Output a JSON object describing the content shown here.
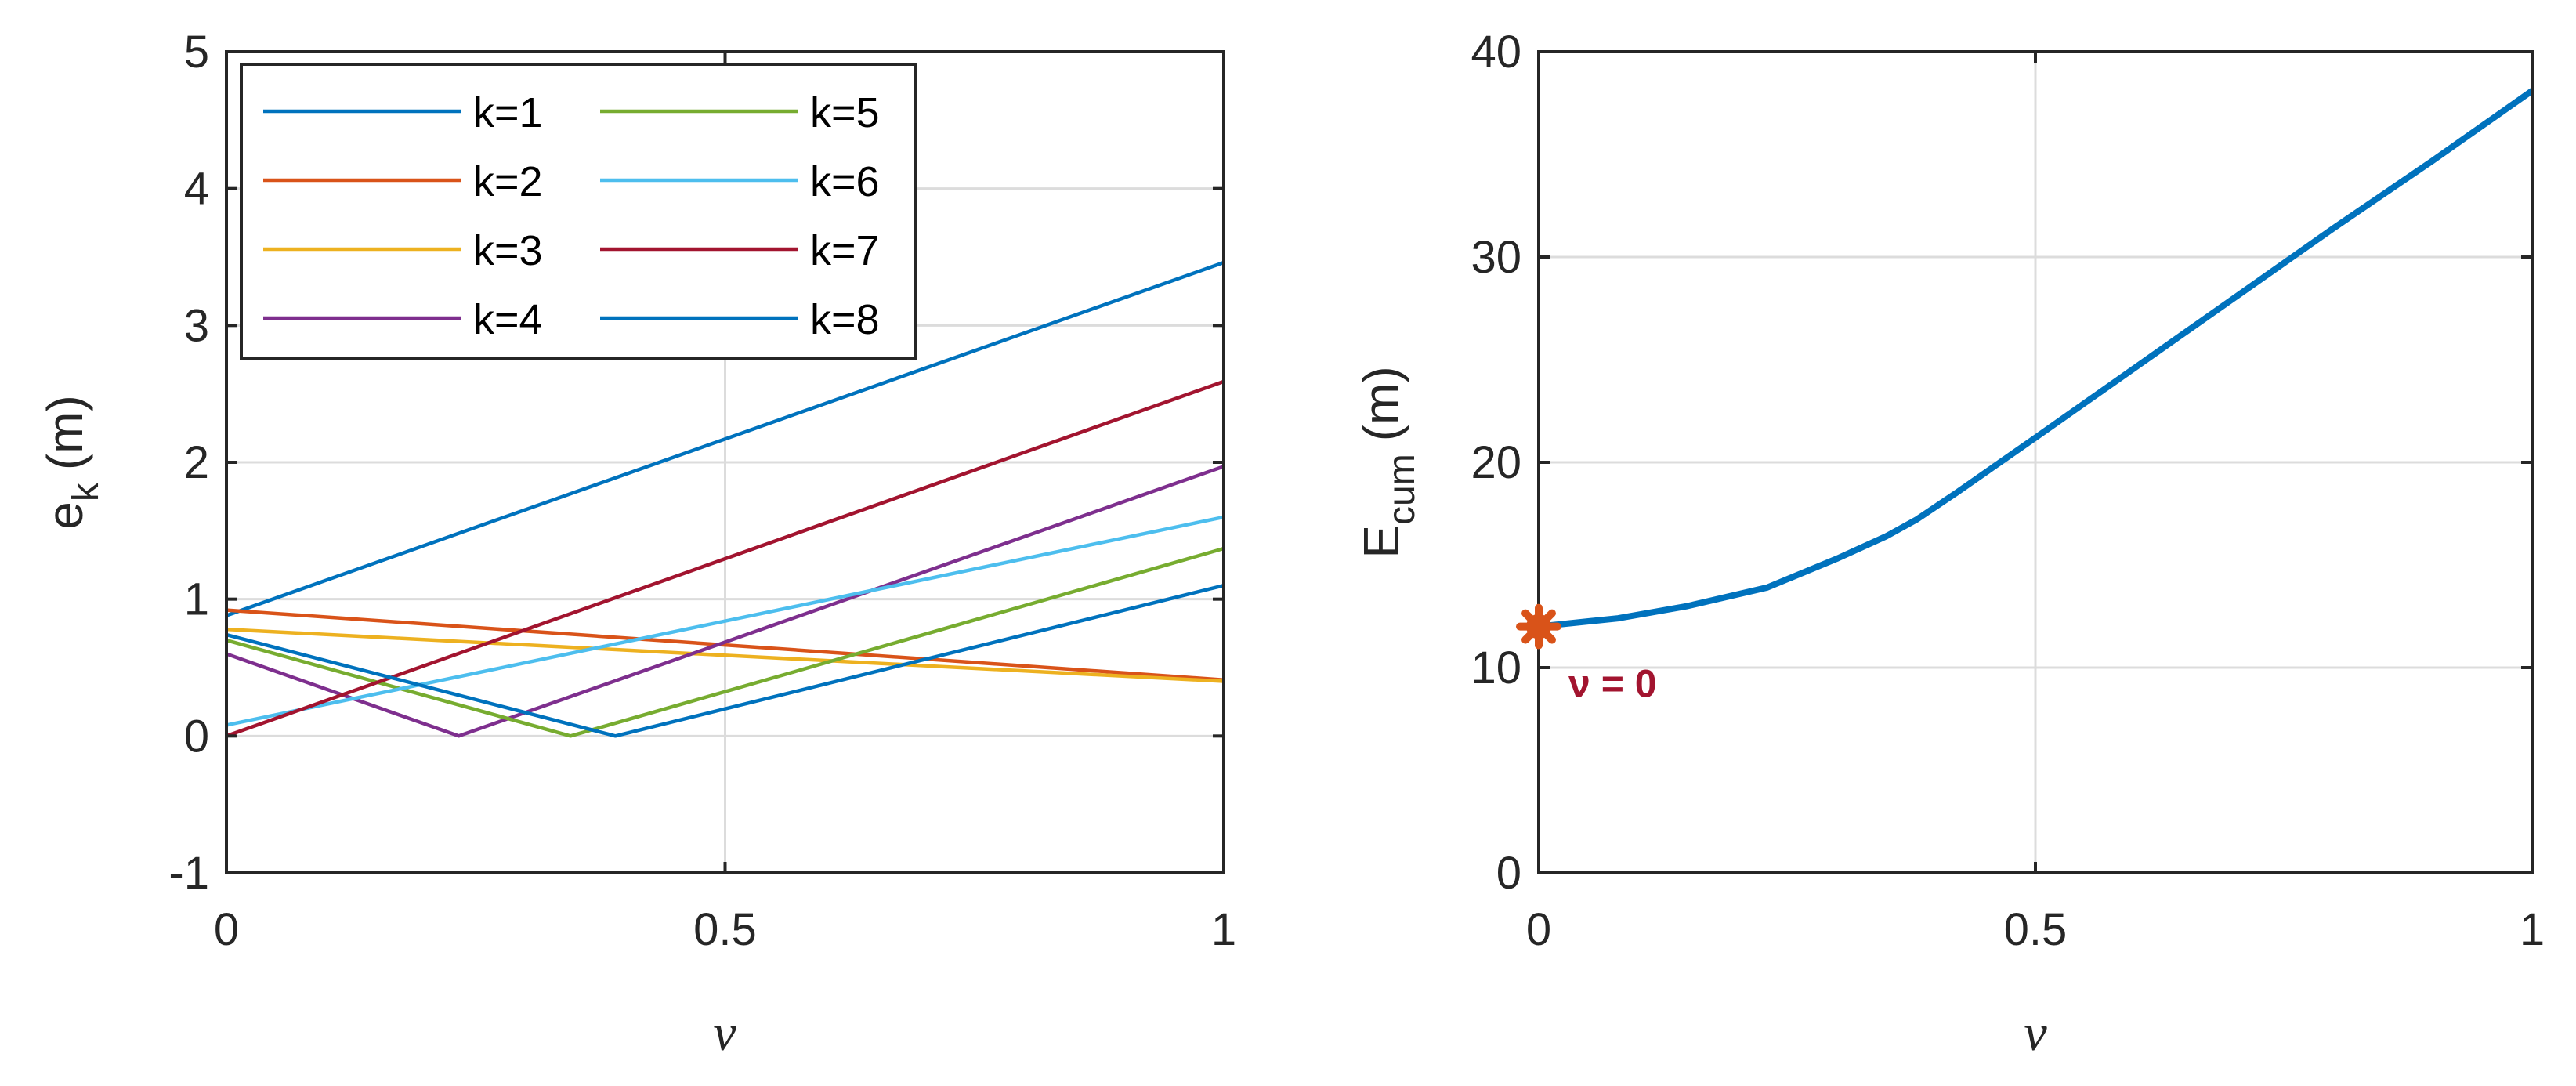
{
  "chart_data": [
    {
      "type": "line",
      "title": "",
      "xlabel": "ν",
      "ylabel": "e",
      "ylabel_sub": "k",
      "ylabel_unit": "(m)",
      "xlim": [
        0,
        1
      ],
      "ylim": [
        -1,
        5
      ],
      "xticks": [
        0,
        0.5,
        1
      ],
      "xtick_labels": [
        "0",
        "0.5",
        "1"
      ],
      "yticks": [
        -1,
        0,
        1,
        2,
        3,
        4,
        5
      ],
      "ytick_labels": [
        "-1",
        "0",
        "1",
        "2",
        "3",
        "4",
        "5"
      ],
      "grid": true,
      "legend": {
        "placement": "top-left",
        "columns": 2
      },
      "series": [
        {
          "name": "k=1",
          "color": "#0072BD",
          "points": [
            [
              0,
              0.88
            ],
            [
              1,
              3.46
            ]
          ]
        },
        {
          "name": "k=2",
          "color": "#D95319",
          "points": [
            [
              0,
              0.92
            ],
            [
              1,
              0.41
            ]
          ]
        },
        {
          "name": "k=3",
          "color": "#EDB120",
          "points": [
            [
              0,
              0.78
            ],
            [
              1,
              0.4
            ]
          ]
        },
        {
          "name": "k=4",
          "color": "#7E2F8E",
          "points": [
            [
              0,
              0.6
            ],
            [
              0.233,
              0.0
            ],
            [
              1,
              1.97
            ]
          ]
        },
        {
          "name": "k=5",
          "color": "#77AC30",
          "points": [
            [
              0,
              0.7
            ],
            [
              0.345,
              0.0
            ],
            [
              1,
              1.37
            ]
          ]
        },
        {
          "name": "k=6",
          "color": "#4DBEEE",
          "points": [
            [
              0,
              0.08
            ],
            [
              1,
              1.6
            ]
          ]
        },
        {
          "name": "k=7",
          "color": "#A2142F",
          "points": [
            [
              0,
              0.0
            ],
            [
              1,
              2.59
            ]
          ]
        },
        {
          "name": "k=8",
          "color": "#0072BD",
          "points": [
            [
              0,
              0.74
            ],
            [
              0.39,
              0.0
            ],
            [
              1,
              1.1
            ]
          ]
        }
      ]
    },
    {
      "type": "line",
      "title": "",
      "xlabel": "ν",
      "ylabel": "E",
      "ylabel_sub": "cum",
      "ylabel_unit": "(m)",
      "xlim": [
        0,
        1
      ],
      "ylim": [
        0,
        40
      ],
      "xticks": [
        0,
        0.5,
        1
      ],
      "xtick_labels": [
        "0",
        "0.5",
        "1"
      ],
      "yticks": [
        0,
        10,
        20,
        30,
        40
      ],
      "ytick_labels": [
        "0",
        "10",
        "20",
        "30",
        "40"
      ],
      "grid": true,
      "series": [
        {
          "name": "E_cum",
          "color": "#0072BD",
          "points": [
            [
              0,
              12.0
            ],
            [
              0.08,
              12.4
            ],
            [
              0.15,
              13.0
            ],
            [
              0.23,
              13.9
            ],
            [
              0.3,
              15.3
            ],
            [
              0.35,
              16.4
            ],
            [
              0.38,
              17.2
            ],
            [
              0.42,
              18.5
            ],
            [
              0.5,
              21.2
            ],
            [
              0.6,
              24.6
            ],
            [
              0.7,
              28.0
            ],
            [
              0.8,
              31.4
            ],
            [
              0.9,
              34.7
            ],
            [
              1.0,
              38.1
            ]
          ]
        }
      ],
      "marker": {
        "x": 0,
        "y": 12.0,
        "color": "#D95319",
        "label": "ν = 0",
        "label_color": "#A2142F"
      }
    }
  ]
}
